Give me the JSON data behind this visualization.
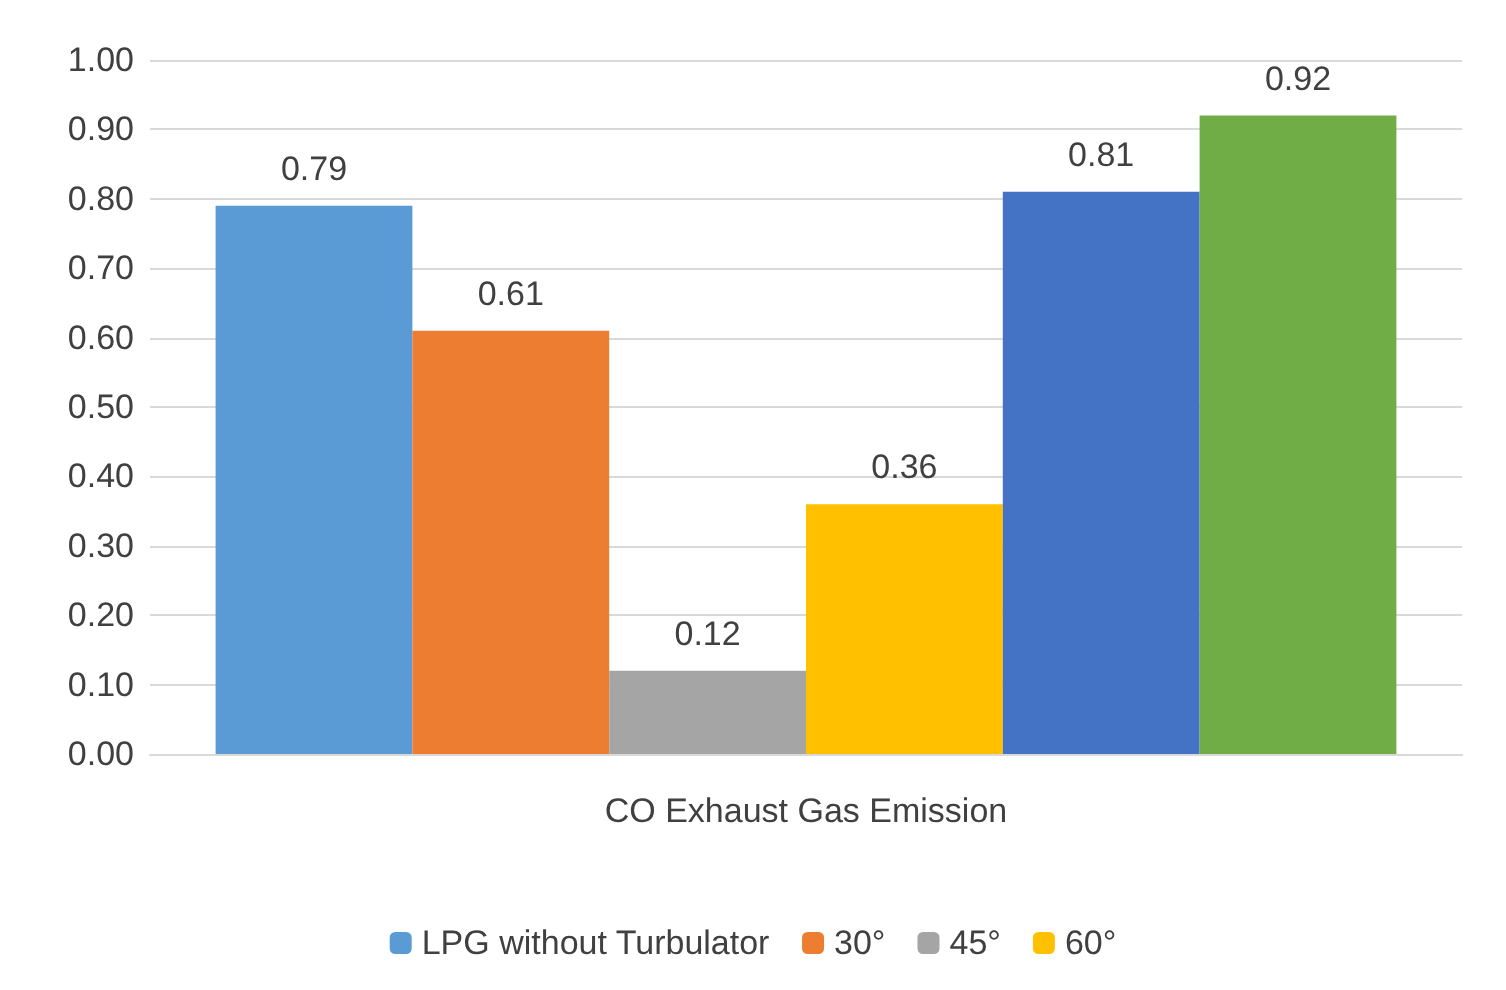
{
  "chart_data": {
    "type": "bar",
    "categories": [
      "CO Exhaust Gas Emission"
    ],
    "series": [
      {
        "name": "LPG without Turbulator",
        "color": "#5b9bd5",
        "values": [
          0.79
        ]
      },
      {
        "name": "30°",
        "color": "#ed7d31",
        "values": [
          0.61
        ]
      },
      {
        "name": "45°",
        "color": "#a5a5a5",
        "values": [
          0.12
        ]
      },
      {
        "name": "60°",
        "color": "#ffc000",
        "values": [
          0.36
        ]
      },
      {
        "color": "#4472c4",
        "values": [
          0.81
        ]
      },
      {
        "color": "#70ad47",
        "values": [
          0.92
        ]
      }
    ],
    "ylim": [
      0,
      1
    ],
    "yticks": [
      {
        "value": 0,
        "label": "0.00"
      },
      {
        "value": 0.1,
        "label": "0.10"
      },
      {
        "value": 0.2,
        "label": "0.20"
      },
      {
        "value": 0.3,
        "label": "0.30"
      },
      {
        "value": 0.4,
        "label": "0.40"
      },
      {
        "value": 0.5,
        "label": "0.50"
      },
      {
        "value": 0.6,
        "label": "0.60"
      },
      {
        "value": 0.7,
        "label": "0.70"
      },
      {
        "value": 0.8,
        "label": "0.80"
      },
      {
        "value": 0.9,
        "label": "0.90"
      },
      {
        "value": 1,
        "label": "1.00"
      }
    ],
    "grid": "y",
    "legend": "bottom",
    "data_labels": true
  }
}
